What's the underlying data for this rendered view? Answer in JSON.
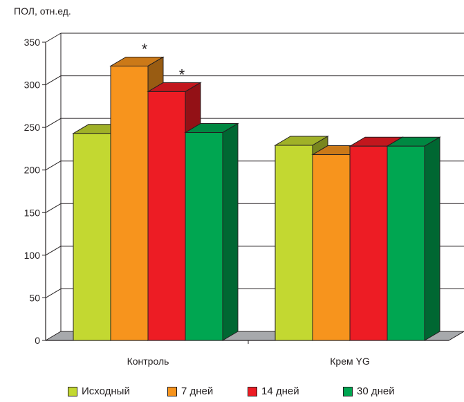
{
  "chart_data": {
    "type": "bar",
    "ylabel": "ПОЛ, отн.ед.",
    "ylim": [
      0,
      350
    ],
    "yticks": [
      0,
      50,
      100,
      150,
      200,
      250,
      300,
      350
    ],
    "categories": [
      "Контроль",
      "Крем YG"
    ],
    "series": [
      {
        "name": "Исходный",
        "values": [
          243,
          229
        ],
        "color": "#c3d831"
      },
      {
        "name": "7 дней",
        "values": [
          322,
          218
        ],
        "color": "#f7941d"
      },
      {
        "name": "14 дней",
        "values": [
          292,
          228
        ],
        "color": "#ed1c24"
      },
      {
        "name": "30 дней",
        "values": [
          244,
          228
        ],
        "color": "#00a651"
      }
    ],
    "annotations": [
      {
        "category": 0,
        "series": 1,
        "text": "*"
      },
      {
        "category": 0,
        "series": 2,
        "text": "*"
      }
    ],
    "grid": true,
    "style": "3d",
    "legend_position": "bottom"
  }
}
